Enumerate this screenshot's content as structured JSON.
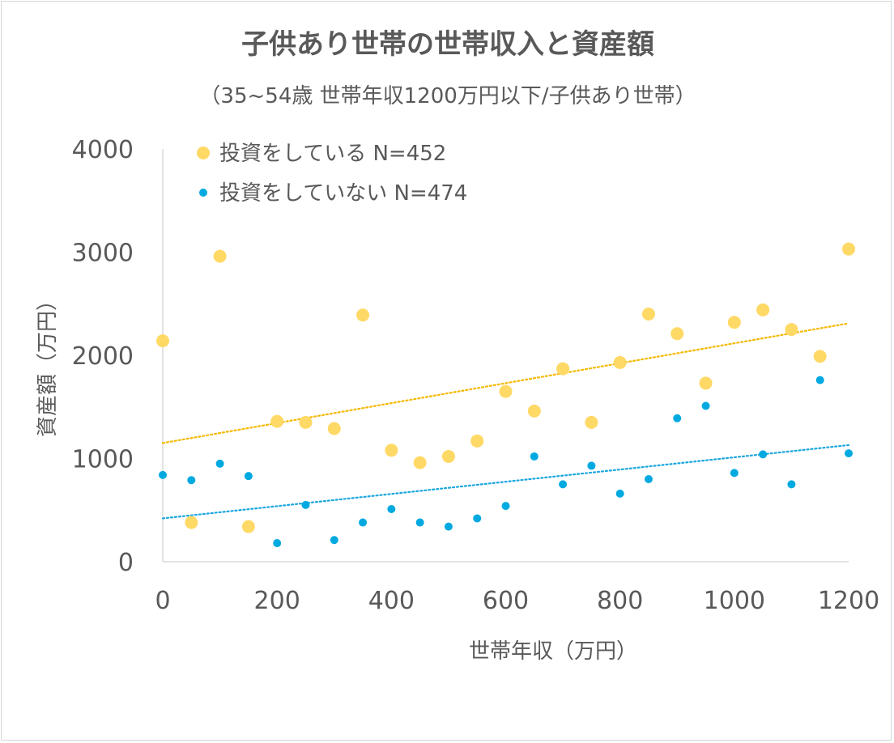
{
  "chart_data": {
    "type": "scatter",
    "title": "子供あり世帯の世帯収入と資産額",
    "subtitle": "（35~54歳 世帯年収1200万円以下/子供あり世帯）",
    "xlabel": "世帯年収（万円）",
    "ylabel": "資産額（万円）",
    "xlim": [
      0,
      1200
    ],
    "ylim": [
      0,
      4000
    ],
    "x_ticks": [
      "0",
      "200",
      "400",
      "600",
      "800",
      "1000",
      "1200"
    ],
    "y_ticks": [
      "0",
      "1000",
      "2000",
      "3000",
      "4000"
    ],
    "x_tick_values": [
      0,
      200,
      400,
      600,
      800,
      1000,
      1200
    ],
    "y_tick_values": [
      0,
      1000,
      2000,
      3000,
      4000
    ],
    "legend_position": "top-left",
    "series": [
      {
        "name": "投資をしている N=452",
        "color": "#FFD966",
        "trend_color": "#F5B800",
        "x": [
          0,
          50,
          100,
          150,
          200,
          250,
          300,
          350,
          400,
          450,
          500,
          550,
          600,
          650,
          700,
          750,
          800,
          850,
          900,
          950,
          1000,
          1050,
          1100,
          1150,
          1200
        ],
        "y": [
          2140,
          380,
          2960,
          340,
          1360,
          1350,
          1290,
          2390,
          1080,
          960,
          1020,
          1170,
          1650,
          1460,
          1870,
          1350,
          1930,
          2400,
          2210,
          1730,
          2320,
          2440,
          2250,
          1990,
          3030
        ],
        "trend": {
          "x": [
            0,
            1200
          ],
          "y": [
            1150,
            2310
          ]
        }
      },
      {
        "name": "投資をしていない N=474",
        "color": "#00A9E0",
        "trend_color": "#1AA6DF",
        "x": [
          0,
          50,
          100,
          150,
          200,
          250,
          300,
          350,
          400,
          450,
          500,
          550,
          600,
          650,
          700,
          750,
          800,
          850,
          900,
          950,
          1000,
          1050,
          1100,
          1150,
          1200
        ],
        "y": [
          840,
          790,
          950,
          830,
          180,
          550,
          210,
          380,
          510,
          380,
          340,
          420,
          540,
          1020,
          750,
          930,
          660,
          800,
          1390,
          1510,
          860,
          1040,
          750,
          1760,
          1050
        ],
        "trend": {
          "x": [
            0,
            1200
          ],
          "y": [
            420,
            1130
          ]
        }
      }
    ]
  }
}
